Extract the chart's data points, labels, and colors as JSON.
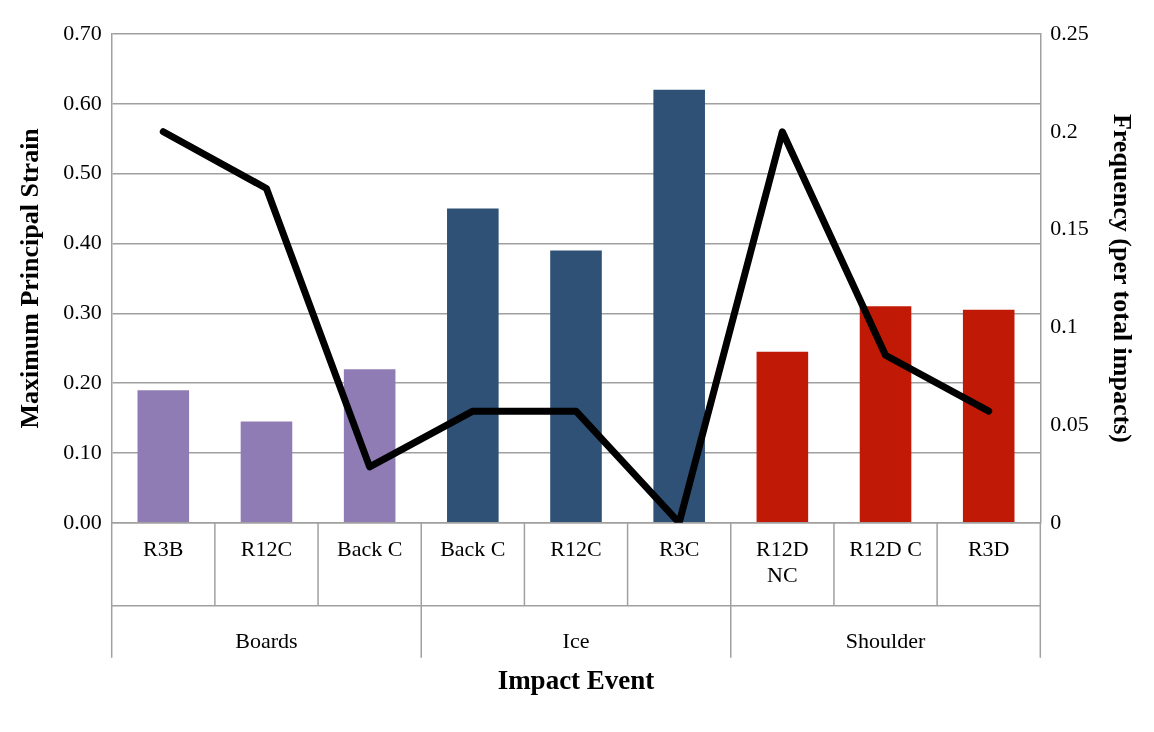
{
  "chart_data": {
    "type": "bar",
    "xlabel": "Impact Event",
    "ylabel": "Maximum Principal Strain",
    "y2label": "Frequency (per total impacts)",
    "categories": [
      "R3B",
      "R12C",
      "Back C",
      "Back C",
      "R12C",
      "R3C",
      "R12D NC",
      "R12D C",
      "R3D"
    ],
    "annotations": [
      "Boards",
      "Ice",
      "Shoulder"
    ],
    "series": [
      {
        "colors": [
          "#907cb4",
          "#907cb4",
          "#907cb4",
          "#2e5175",
          "#2e5175",
          "#2e5175",
          "#c01a06",
          "#c01a06",
          "#c01a06"
        ],
        "values": [
          0.19,
          0.145,
          0.22,
          0.45,
          0.39,
          0.62,
          0.245,
          0.31,
          0.305
        ]
      },
      {
        "type": "line",
        "axis": "y2",
        "color": "#000000",
        "values": [
          0.2,
          0.171,
          0.0286,
          0.0571,
          0.0571,
          0,
          0.2,
          0.0857,
          0.0571
        ]
      }
    ],
    "ylim": [
      0,
      0.7
    ],
    "yticks": [
      {
        "value": 0,
        "label": "0.00"
      },
      {
        "value": 0.1,
        "label": "0.10"
      },
      {
        "value": 0.2,
        "label": "0.20"
      },
      {
        "value": 0.3,
        "label": "0.30"
      },
      {
        "value": 0.4,
        "label": "0.40"
      },
      {
        "value": 0.5,
        "label": "0.50"
      },
      {
        "value": 0.6,
        "label": "0.60"
      },
      {
        "value": 0.7,
        "label": "0.70"
      }
    ],
    "y2lim": [
      0,
      0.25
    ],
    "y2ticks": [
      0,
      0.05,
      0.1,
      0.15,
      0.2,
      0.25
    ],
    "grid": "y",
    "legend": false,
    "marker": "none",
    "line_style": "solid"
  }
}
